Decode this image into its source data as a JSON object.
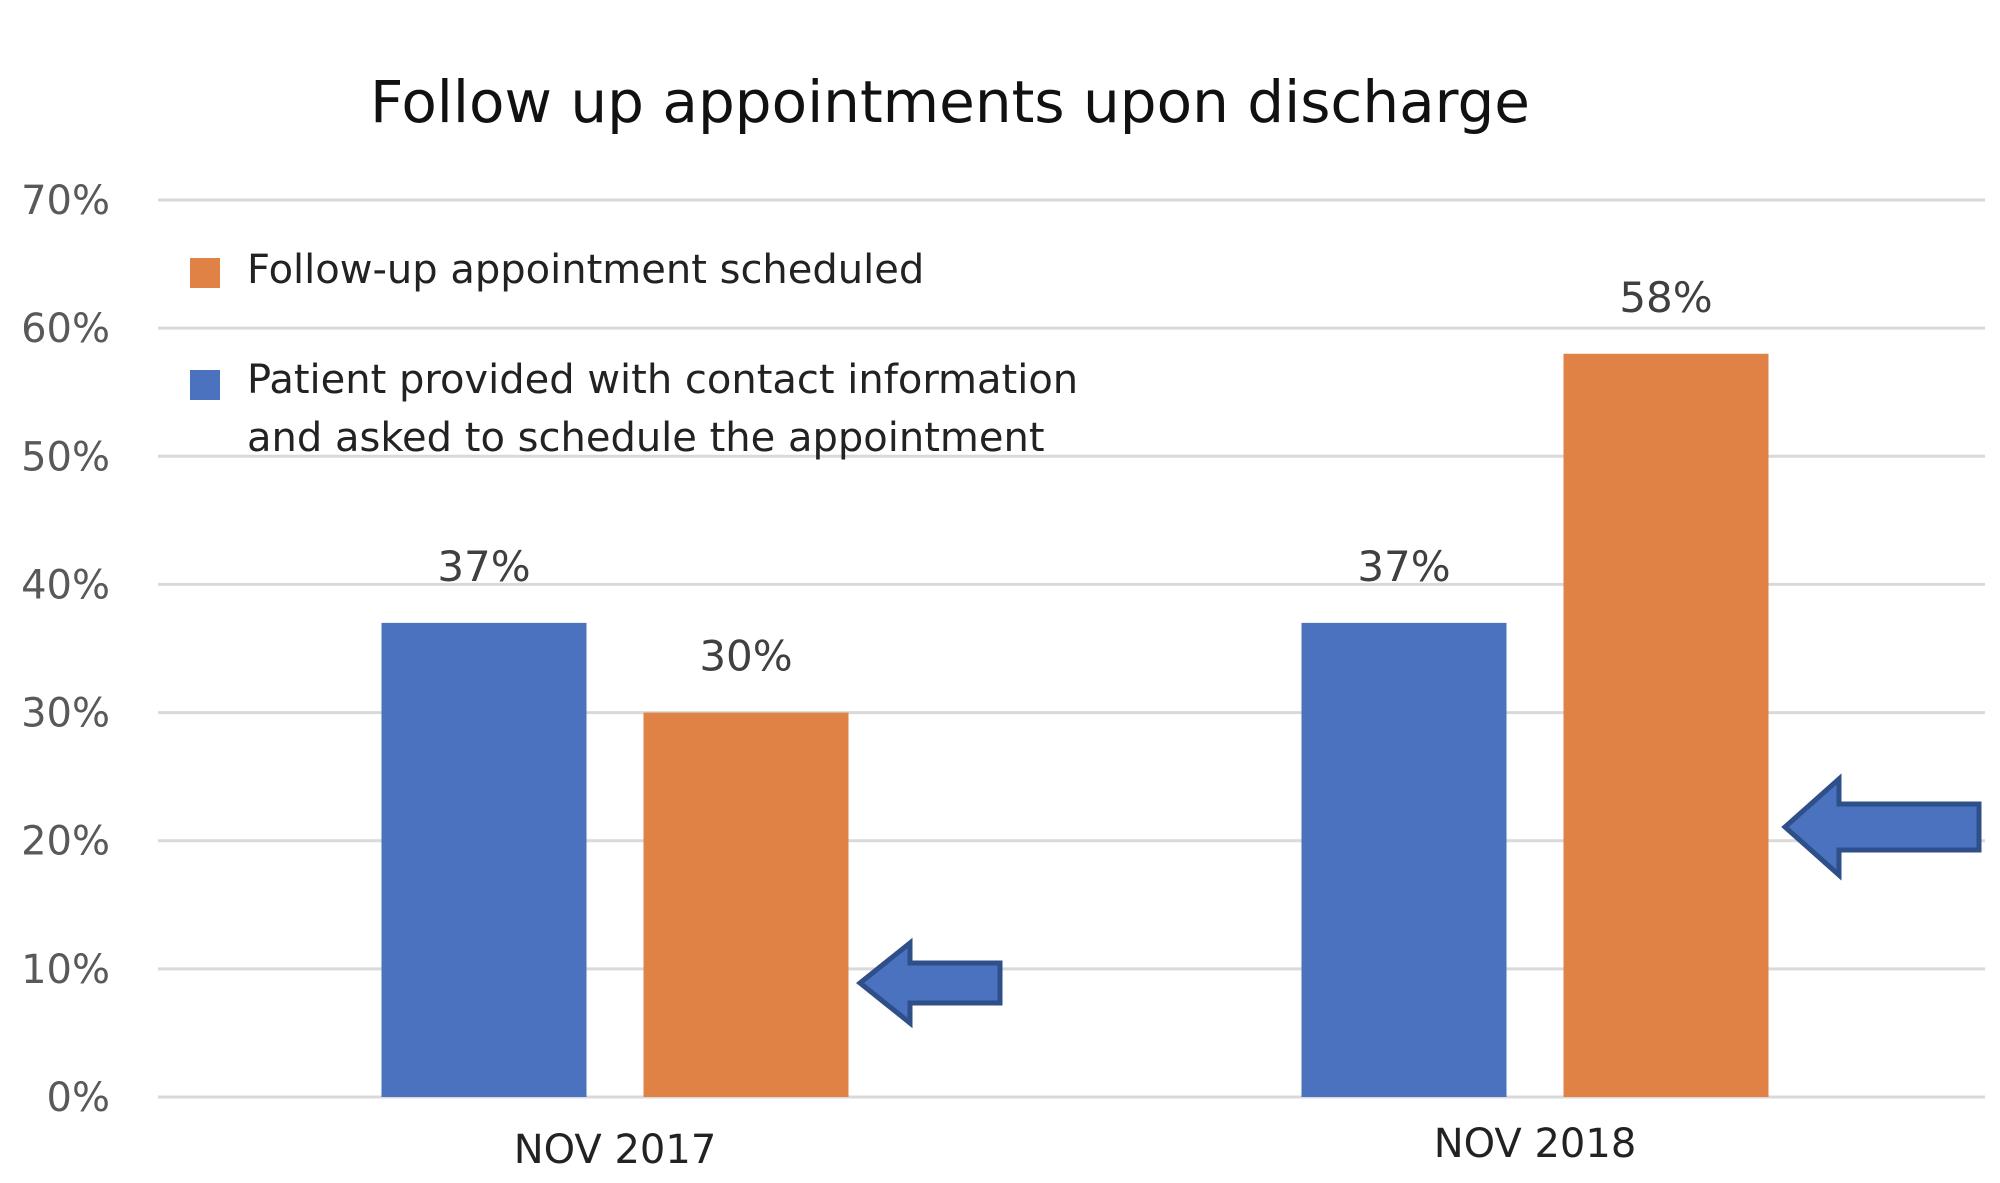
{
  "chart_data": {
    "type": "bar",
    "title": "Follow up appointments upon discharge",
    "xlabel": "",
    "ylabel": "",
    "categories": [
      "NOV 2017",
      "NOV 2018"
    ],
    "series": [
      {
        "name": "Patient provided with contact information and asked to schedule the appointment",
        "legend_lines": [
          "Patient provided with contact information",
          "and asked to schedule the appointment"
        ],
        "color": "#4a72be",
        "values": [
          37,
          37
        ],
        "labels": [
          "37%",
          "37%"
        ]
      },
      {
        "name": "Follow-up appointment scheduled",
        "legend_lines": [
          "Follow-up appointment scheduled"
        ],
        "color": "#e08245",
        "values": [
          30,
          58
        ],
        "labels": [
          "30%",
          "58%"
        ]
      }
    ],
    "ylim": [
      0,
      70
    ],
    "yticks": [
      0,
      10,
      20,
      30,
      40,
      50,
      60,
      70
    ],
    "ytick_labels": [
      "0%",
      "10%",
      "20%",
      "30%",
      "40%",
      "50%",
      "60%",
      "70%"
    ],
    "grid": true,
    "legend_position": "top-left",
    "legend_order": [
      1,
      0
    ],
    "annotations": [
      {
        "type": "arrow",
        "points_to": "NOV 2017 Follow-up appointment scheduled",
        "color": "#4a72be"
      },
      {
        "type": "arrow",
        "points_to": "NOV 2018 Follow-up appointment scheduled",
        "color": "#4a72be"
      }
    ],
    "gridline_color": "#d9d9d9"
  }
}
